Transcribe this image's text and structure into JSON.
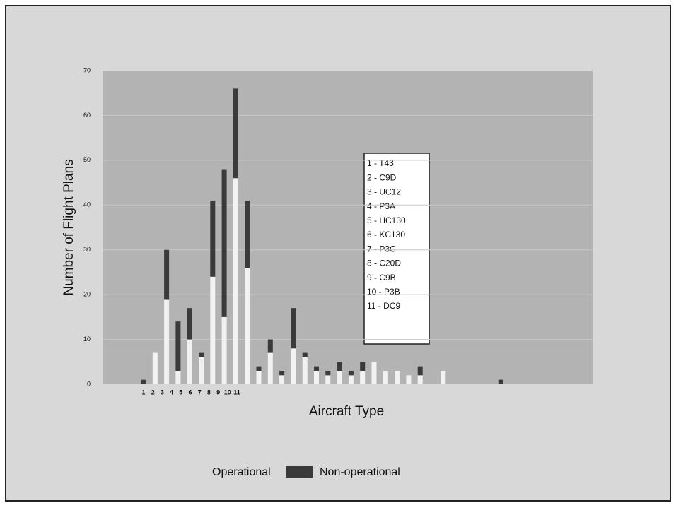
{
  "chart_data": {
    "type": "bar",
    "stacked": true,
    "xlabel": "Aircraft Type",
    "ylabel": "Number of Flight Plans",
    "categories": [
      "1",
      "2",
      "3",
      "4",
      "5",
      "6",
      "7",
      "8",
      "9",
      "10",
      "11",
      null,
      null,
      null,
      null,
      null,
      null,
      null,
      null,
      null,
      null,
      null,
      null,
      null,
      null,
      null,
      null,
      null,
      null,
      null,
      null,
      null
    ],
    "series": [
      {
        "name": "Operational",
        "color": "#f2f2f2",
        "values": [
          0,
          7,
          19,
          3,
          10,
          6,
          24,
          15,
          46,
          26,
          3,
          7,
          2,
          8,
          6,
          3,
          2,
          3,
          2,
          3,
          5,
          3,
          3,
          2,
          2,
          0,
          3,
          0,
          0,
          0,
          0,
          0
        ]
      },
      {
        "name": "Non-operational",
        "color": "#3a3a3a",
        "values": [
          1,
          0,
          11,
          11,
          7,
          1,
          17,
          33,
          20,
          15,
          1,
          3,
          1,
          9,
          1,
          1,
          1,
          2,
          1,
          2,
          0,
          0,
          0,
          0,
          2,
          0,
          0,
          0,
          0,
          0,
          0,
          1
        ]
      }
    ],
    "ylim": [
      0,
      70
    ],
    "yticks": [
      0,
      10,
      20,
      30,
      40,
      50,
      60,
      70
    ],
    "key_box": [
      "1  - T43",
      "2  - C9D",
      "3  - UC12",
      "4  - P3A",
      "5  - HC130",
      "6  - KC130",
      "7  - P3C",
      "8  - C20D",
      "9  - C9B",
      "10 - P3B",
      "11 - DC9"
    ],
    "legend": "bottom"
  }
}
